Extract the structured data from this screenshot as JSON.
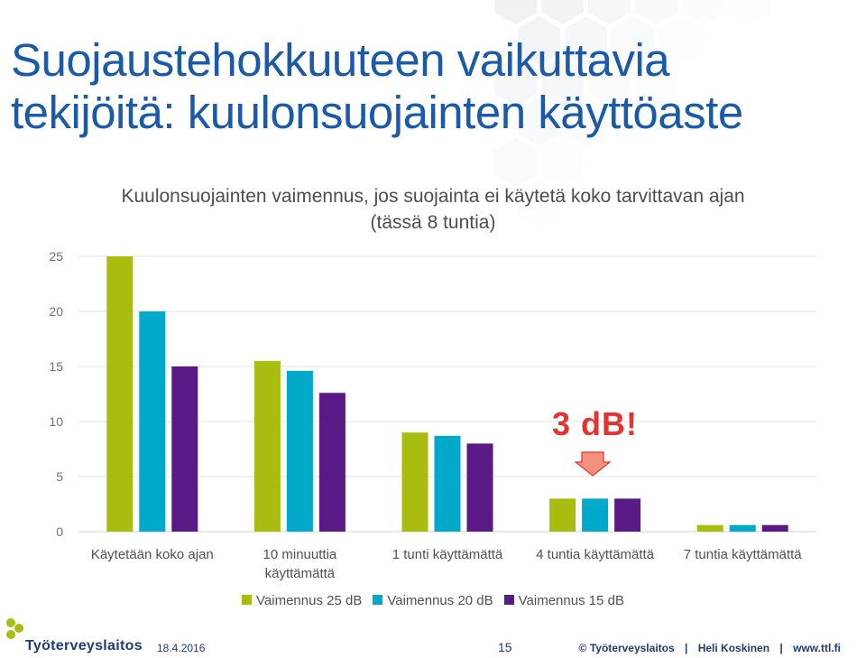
{
  "slide": {
    "title": "Suojaustehokkuuteen vaikuttavia tekijöitä: kuulonsuojainten käyttöaste"
  },
  "chart_data": {
    "type": "bar",
    "title": "Kuulonsuojainten vaimennus, jos suojainta ei käytetä koko tarvittavan ajan (tässä 8 tuntia)",
    "categories": [
      "Käytetään koko ajan",
      "10 minuuttia käyttämättä",
      "1 tunti käyttämättä",
      "4 tuntia käyttämättä",
      "7 tuntia käyttämättä"
    ],
    "series": [
      {
        "name": "Vaimennus 25 dB",
        "color": "#a9bc10",
        "values": [
          25,
          15.5,
          9,
          3,
          0.6
        ]
      },
      {
        "name": "Vaimennus 20 dB",
        "color": "#00a8c9",
        "values": [
          20,
          14.6,
          8.7,
          3,
          0.6
        ]
      },
      {
        "name": "Vaimennus 15 dB",
        "color": "#5a1a86",
        "values": [
          15,
          12.6,
          8,
          3,
          0.6
        ]
      }
    ],
    "yticks": [
      "0",
      "5",
      "10",
      "15",
      "20",
      "25"
    ],
    "ylim": [
      0,
      25
    ],
    "grid": true,
    "legend": "bottom",
    "annotation": "3 dB!"
  },
  "footer": {
    "logo_text": "Työterveyslaitos",
    "date": "18.4.2016",
    "page": "15",
    "copyright": "© Työterveyslaitos",
    "separator": "|",
    "author": "Heli Koskinen",
    "website": "www.ttl.fi"
  }
}
